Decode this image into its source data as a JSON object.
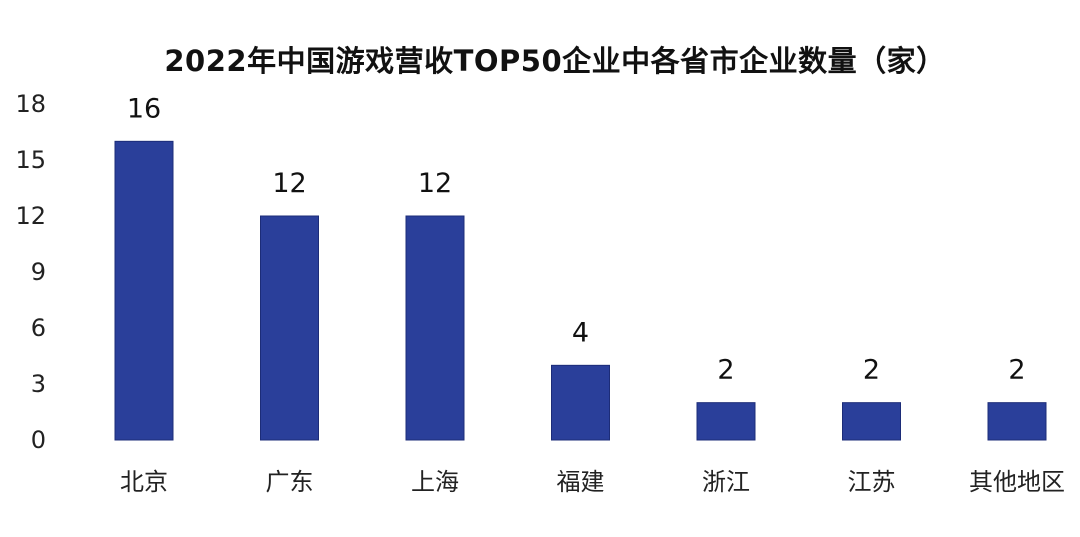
{
  "chart_data": {
    "type": "bar",
    "title": "2022年中国游戏营收TOP50企业中各省市企业数量（家）",
    "xlabel": "",
    "ylabel": "",
    "categories": [
      "北京",
      "广东",
      "上海",
      "福建",
      "浙江",
      "江苏",
      "其他地区"
    ],
    "values": [
      16,
      12,
      12,
      4,
      2,
      2,
      2
    ],
    "data_labels": [
      "16",
      "12",
      "12",
      "4",
      "2",
      "2",
      "2"
    ],
    "ylim": [
      0,
      18
    ],
    "yticks": [
      0,
      3,
      6,
      9,
      12,
      15,
      18
    ],
    "ytick_labels": [
      "0",
      "3",
      "6",
      "9",
      "12",
      "15",
      "18"
    ],
    "grid": false,
    "legend": "none",
    "bar_color": "#2a3f9a"
  }
}
